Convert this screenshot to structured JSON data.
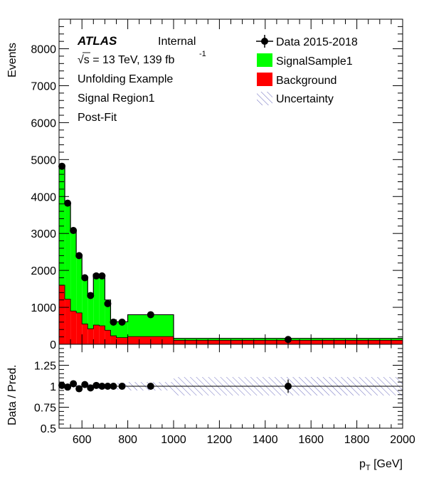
{
  "chart_data": {
    "type": "bar",
    "bin_edges": [
      500,
      525,
      550,
      575,
      600,
      625,
      650,
      675,
      700,
      725,
      750,
      800,
      1000,
      2000
    ],
    "series": [
      {
        "name": "Background",
        "color": "#ff0000",
        "values": [
          1600,
          1220,
          900,
          850,
          550,
          420,
          520,
          500,
          380,
          230,
          180,
          210,
          110
        ]
      },
      {
        "name": "SignalSample1",
        "color": "#00ff00",
        "values": [
          3250,
          2600,
          2180,
          1550,
          1250,
          920,
          1380,
          1350,
          820,
          430,
          430,
          590,
          50
        ]
      }
    ],
    "data": {
      "name": "Data 2015-2018",
      "x": [
        512.5,
        537.5,
        562.5,
        587.5,
        612.5,
        637.5,
        662.5,
        687.5,
        712.5,
        737.5,
        775,
        900,
        1500
      ],
      "y": [
        4820,
        3820,
        3080,
        2400,
        1800,
        1320,
        1850,
        1850,
        1100,
        600,
        600,
        800,
        130
      ]
    },
    "ratio": {
      "ylabel": "Data / Pred.",
      "ylim": [
        0.5,
        1.5
      ],
      "yticks": [
        0.5,
        0.75,
        1,
        1.25
      ],
      "x": [
        512.5,
        537.5,
        562.5,
        587.5,
        612.5,
        637.5,
        662.5,
        687.5,
        712.5,
        737.5,
        775,
        900,
        1500
      ],
      "y": [
        1.01,
        0.99,
        1.03,
        0.97,
        1.02,
        0.98,
        1.01,
        1.0,
        1.0,
        1.0,
        1.0,
        1.0,
        1.0
      ],
      "yerr": [
        0.01,
        0.01,
        0.01,
        0.02,
        0.02,
        0.02,
        0.02,
        0.02,
        0.02,
        0.03,
        0.03,
        0.03,
        0.08
      ],
      "band_err": [
        0.02,
        0.02,
        0.02,
        0.02,
        0.02,
        0.03,
        0.03,
        0.03,
        0.03,
        0.04,
        0.04,
        0.05,
        0.11
      ]
    },
    "xlim": [
      500,
      2000
    ],
    "ylim": [
      0,
      8800
    ],
    "xticks": [
      600,
      800,
      1000,
      1200,
      1400,
      1600,
      1800,
      2000
    ],
    "yticks": [
      0,
      1000,
      2000,
      3000,
      4000,
      5000,
      6000,
      7000,
      8000
    ],
    "ylabel": "Events",
    "xlabel_main": "p",
    "xlabel_sub": "T",
    "xlabel_unit": " [GeV]",
    "legend_placement": "top-right",
    "grid": false
  },
  "labels": {
    "atlas": "ATLAS",
    "internal": "Internal",
    "sqrt": "√s = 13 TeV, 139 fb",
    "lumi_exp": "-1",
    "line3": "Unfolding Example",
    "line4": "Signal Region1",
    "line5": "Post-Fit"
  },
  "legend": {
    "data": "Data 2015-2018",
    "signal": "SignalSample1",
    "background": "Background",
    "uncertainty": "Uncertainty"
  }
}
